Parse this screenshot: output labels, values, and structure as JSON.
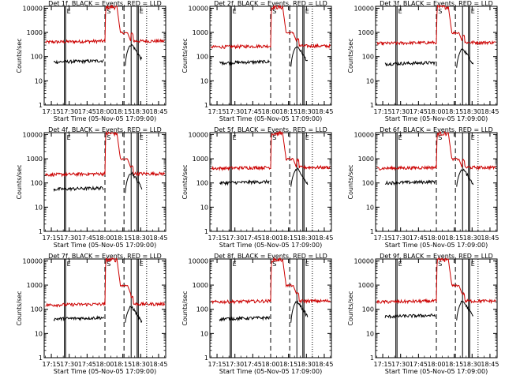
{
  "chart_data": {
    "type": "line",
    "shared": {
      "ylabel": "Counts/sec",
      "xlabel": "Start Time (05-Nov-05 17:09:00)",
      "x_ticks": [
        "17:15",
        "17:30",
        "17:45",
        "18:00",
        "18:15",
        "18:30",
        "18:45"
      ],
      "x_range": [
        "17:09",
        "18:51"
      ],
      "y_ticks": [
        "1",
        "10",
        "100",
        "1000",
        "10000"
      ],
      "y_range": [
        1,
        12000
      ],
      "y_scale": "log",
      "legend_title_suffix": "BLACK = Events, RED = LLD",
      "markers": [
        "E",
        "S",
        "E"
      ],
      "solid_lines": [
        "17:26",
        "17:27",
        "18:22",
        "18:27",
        "18:28"
      ],
      "dashed_lines": [
        "18:00",
        "18:16"
      ],
      "dotted_lines": [
        "18:35"
      ],
      "series": [
        {
          "name": "Events",
          "color": "#000000"
        },
        {
          "name": "LLD",
          "color": "#cc0000"
        }
      ]
    },
    "panels": [
      {
        "title": "Det 1f",
        "lld_base": 400,
        "lld_peak": 12000,
        "events_base": 60,
        "events_peak": 300
      },
      {
        "title": "Det 2f",
        "lld_base": 250,
        "lld_peak": 12000,
        "events_base": 55,
        "events_peak": 250
      },
      {
        "title": "Det 3f",
        "lld_base": 350,
        "lld_peak": 12000,
        "events_base": 50,
        "events_peak": 200
      },
      {
        "title": "Det 4f",
        "lld_base": 220,
        "lld_peak": 12000,
        "events_base": 55,
        "events_peak": 250
      },
      {
        "title": "Det 5f",
        "lld_base": 400,
        "lld_peak": 12000,
        "events_base": 100,
        "events_peak": 350
      },
      {
        "title": "Det 6f",
        "lld_base": 400,
        "lld_peak": 12000,
        "events_base": 100,
        "events_peak": 350
      },
      {
        "title": "Det 7f",
        "lld_base": 150,
        "lld_peak": 12000,
        "events_base": 40,
        "events_peak": 120
      },
      {
        "title": "Det 8f",
        "lld_base": 200,
        "lld_peak": 12000,
        "events_base": 40,
        "events_peak": 200
      },
      {
        "title": "Det 9f",
        "lld_base": 200,
        "lld_peak": 12000,
        "events_base": 50,
        "events_peak": 200
      }
    ]
  }
}
